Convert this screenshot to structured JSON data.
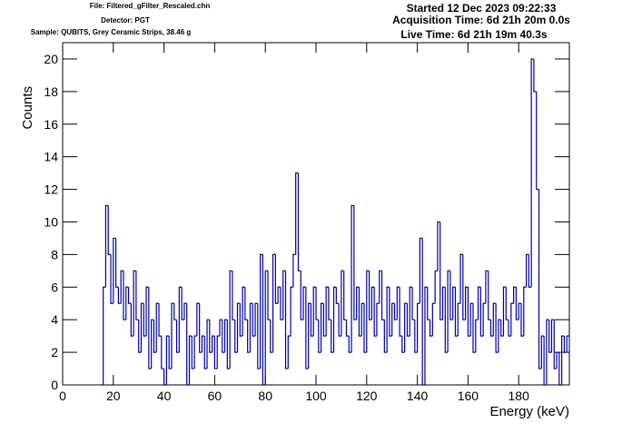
{
  "chart_data": {
    "type": "histogram",
    "header_left": [
      "File: Filtered_gFilter_Rescaled.chn",
      "Detector: PGT",
      "Sample: QUBITS, Grey Ceramic Strips, 38.46 g"
    ],
    "header_right": [
      "Started 12 Dec 2023 09:22:33",
      "Acquisition Time: 6d 21h 20m 0.0s",
      "Live Time: 6d 21h 19m 40.3s"
    ],
    "x_label": "Energy (keV)",
    "y_label": "Counts",
    "color": "#000099",
    "xlim": [
      0,
      200
    ],
    "ylim": [
      0,
      21
    ],
    "xticks": [
      0,
      20,
      40,
      60,
      80,
      100,
      120,
      140,
      160,
      180
    ],
    "yticks": [
      0,
      2,
      4,
      6,
      8,
      10,
      12,
      14,
      16,
      18,
      20
    ],
    "bins": [
      15,
      16,
      17,
      18,
      19,
      20,
      21,
      22,
      23,
      24,
      25,
      26,
      27,
      28,
      29,
      30,
      31,
      32,
      33,
      34,
      35,
      36,
      37,
      38,
      39,
      40,
      41,
      42,
      43,
      44,
      45,
      46,
      47,
      48,
      49,
      50,
      51,
      52,
      53,
      54,
      55,
      56,
      57,
      58,
      59,
      60,
      61,
      62,
      63,
      64,
      65,
      66,
      67,
      68,
      69,
      70,
      71,
      72,
      73,
      74,
      75,
      76,
      77,
      78,
      79,
      80,
      81,
      82,
      83,
      84,
      85,
      86,
      87,
      88,
      89,
      90,
      91,
      92,
      93,
      94,
      95,
      96,
      97,
      98,
      99,
      100,
      101,
      102,
      103,
      104,
      105,
      106,
      107,
      108,
      109,
      110,
      111,
      112,
      113,
      114,
      115,
      116,
      117,
      118,
      119,
      120,
      121,
      122,
      123,
      124,
      125,
      126,
      127,
      128,
      129,
      130,
      131,
      132,
      133,
      134,
      135,
      136,
      137,
      138,
      139,
      140,
      141,
      142,
      143,
      144,
      145,
      146,
      147,
      148,
      149,
      150,
      151,
      152,
      153,
      154,
      155,
      156,
      157,
      158,
      159,
      160,
      161,
      162,
      163,
      164,
      165,
      166,
      167,
      168,
      169,
      170,
      171,
      172,
      173,
      174,
      175,
      176,
      177,
      178,
      179,
      180,
      181,
      182,
      183,
      184,
      185,
      186,
      187,
      188,
      189,
      190,
      191,
      192,
      193,
      194,
      195,
      196,
      197,
      198,
      199,
      200
    ],
    "values": [
      0,
      6,
      11,
      8,
      5,
      9,
      6,
      5,
      7,
      4,
      6,
      5,
      3,
      7,
      4,
      2,
      5,
      3,
      6,
      1,
      4,
      2,
      5,
      3,
      1,
      0,
      3,
      1,
      5,
      4,
      2,
      6,
      4,
      5,
      0,
      3,
      1,
      3,
      5,
      2,
      3,
      1,
      4,
      2,
      3,
      1,
      3,
      4,
      2,
      4,
      1,
      7,
      4,
      2,
      5,
      3,
      6,
      4,
      2,
      5,
      3,
      5,
      1,
      8,
      0,
      7,
      4,
      2,
      8,
      5,
      6,
      4,
      7,
      1,
      3,
      6,
      8,
      13,
      7,
      4,
      6,
      1,
      5,
      3,
      6,
      4,
      2,
      5,
      3,
      6,
      4,
      2,
      6,
      5,
      3,
      7,
      4,
      3,
      2,
      11,
      4,
      6,
      3,
      5,
      2,
      7,
      4,
      6,
      3,
      5,
      7,
      4,
      2,
      6,
      3,
      5,
      4,
      6,
      3,
      2,
      5,
      3,
      6,
      4,
      2,
      5,
      9,
      0,
      6,
      4,
      3,
      5,
      7,
      10,
      4,
      6,
      2,
      7,
      4,
      6,
      3,
      5,
      8,
      4,
      6,
      3,
      5,
      2,
      4,
      6,
      3,
      5,
      7,
      4,
      3,
      5,
      2,
      4,
      3,
      6,
      4,
      3,
      5,
      6,
      4,
      5,
      3,
      6,
      8,
      6,
      20,
      18,
      12,
      1,
      3,
      0,
      4,
      2,
      4,
      1,
      2,
      0,
      3,
      2,
      3
    ]
  }
}
